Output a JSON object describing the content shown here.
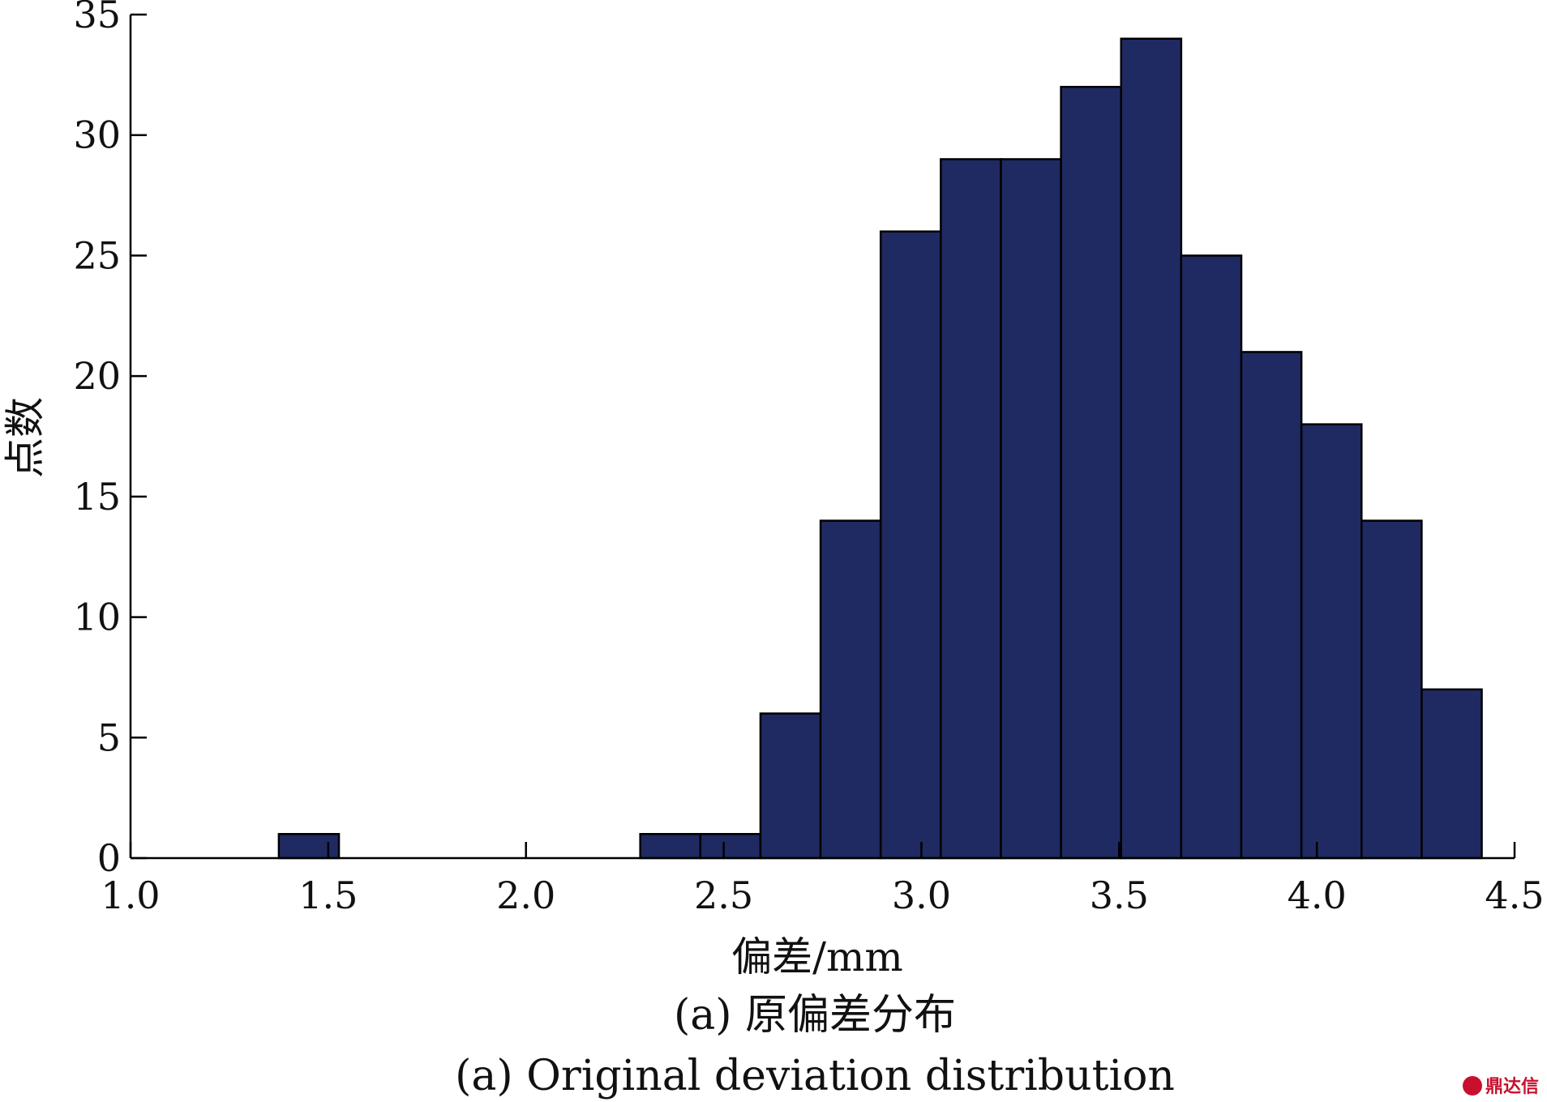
{
  "chart_data": {
    "type": "bar",
    "xlabel": "偏差/mm",
    "ylabel": "点数",
    "xlim": [
      1.0,
      4.5
    ],
    "ylim": [
      0,
      35
    ],
    "x_ticks": [
      "1.0",
      "1.5",
      "2.0",
      "2.5",
      "3.0",
      "3.5",
      "4.0",
      "4.5"
    ],
    "y_ticks": [
      "0",
      "5",
      "10",
      "15",
      "20",
      "25",
      "30",
      "35"
    ],
    "bin_width": 0.152,
    "bins": [
      {
        "x0": 1.375,
        "x1": 1.527,
        "count": 1
      },
      {
        "x0": 2.289,
        "x1": 2.441,
        "count": 1
      },
      {
        "x0": 2.441,
        "x1": 2.593,
        "count": 1
      },
      {
        "x0": 2.593,
        "x1": 2.745,
        "count": 6
      },
      {
        "x0": 2.745,
        "x1": 2.897,
        "count": 14
      },
      {
        "x0": 2.897,
        "x1": 3.049,
        "count": 26
      },
      {
        "x0": 3.049,
        "x1": 3.201,
        "count": 29
      },
      {
        "x0": 3.201,
        "x1": 3.353,
        "count": 29
      },
      {
        "x0": 3.353,
        "x1": 3.505,
        "count": 32
      },
      {
        "x0": 3.505,
        "x1": 3.657,
        "count": 34
      },
      {
        "x0": 3.657,
        "x1": 3.809,
        "count": 25
      },
      {
        "x0": 3.809,
        "x1": 3.961,
        "count": 21
      },
      {
        "x0": 3.961,
        "x1": 4.113,
        "count": 18
      },
      {
        "x0": 4.113,
        "x1": 4.265,
        "count": 14
      },
      {
        "x0": 4.265,
        "x1": 4.417,
        "count": 7
      }
    ],
    "grid": false,
    "bar_color": "#1f2a63"
  },
  "caption": {
    "cn": "(a) 原偏差分布",
    "en": "(a) Original deviation distribution"
  },
  "watermark": {
    "text": "鼎达信",
    "color": "#c8102e"
  }
}
